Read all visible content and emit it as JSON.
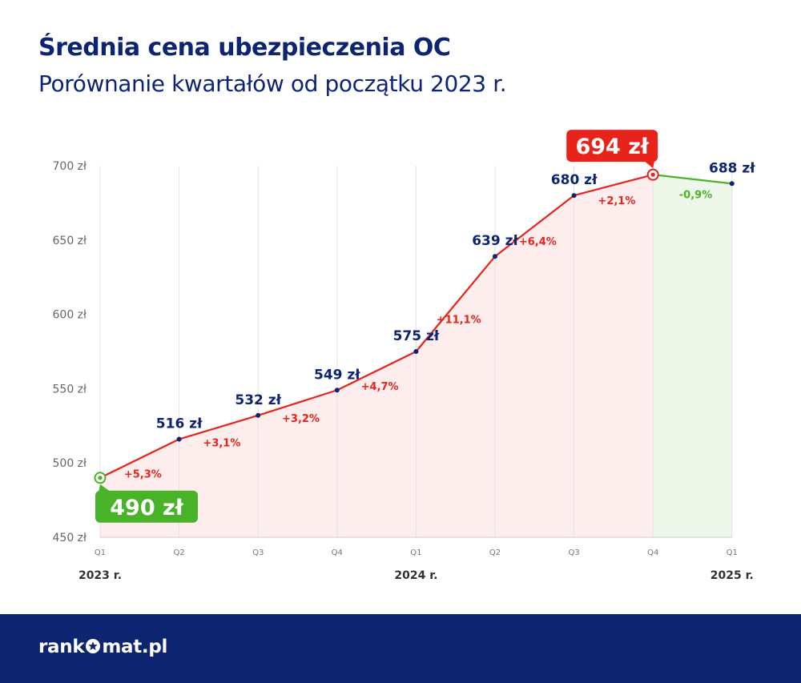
{
  "header": {
    "title": "Średnia cena ubezpieczenia OC",
    "subtitle": "Porównanie kwartałów od początku 2023 r."
  },
  "chart_data": {
    "type": "line",
    "title": "Średnia cena ubezpieczenia OC",
    "subtitle": "Porównanie kwartałów od początku 2023 r.",
    "ylim": [
      450,
      700
    ],
    "y_ticks": [
      450,
      500,
      550,
      600,
      650,
      700
    ],
    "y_tick_labels": [
      "450 zł",
      "500 zł",
      "550 zł",
      "600 zł",
      "650 zł",
      "700 zł"
    ],
    "categories": [
      "Q1",
      "Q2",
      "Q3",
      "Q4",
      "Q1",
      "Q2",
      "Q3",
      "Q4",
      "Q1"
    ],
    "years": [
      {
        "label": "2023 r.",
        "index": 0
      },
      {
        "label": "2024 r.",
        "index": 4
      },
      {
        "label": "2025 r.",
        "index": 8
      }
    ],
    "series": [
      {
        "values": [
          490,
          516,
          532,
          549,
          575,
          639,
          680,
          694,
          688
        ],
        "value_labels": [
          "490 zł",
          "516 zł",
          "532 zł",
          "549 zł",
          "575 zł",
          "639 zł",
          "680 zł",
          "694 zł",
          "688 zł"
        ]
      }
    ],
    "changes": [
      "+5,3%",
      "+3,1%",
      "+3,2%",
      "+4,7%",
      "+11,1%",
      "+6,4%",
      "+2,1%",
      "-0,9%"
    ],
    "highlight_min_index": 0,
    "highlight_max_index": 7,
    "colors": {
      "rise": "#e8231b",
      "fall": "#48b328",
      "rise_fill": "#fdeeed",
      "fall_fill": "#eef8ea",
      "value_label": "#0d2473",
      "axis_text": "#666666",
      "grid": "#e3e3e3",
      "min_badge": "#48b328",
      "max_badge": "#e8231b"
    },
    "grid": "vertical"
  },
  "footer": {
    "brand_before": "rank",
    "brand_after": "mat.pl",
    "background": "#0d2471"
  }
}
